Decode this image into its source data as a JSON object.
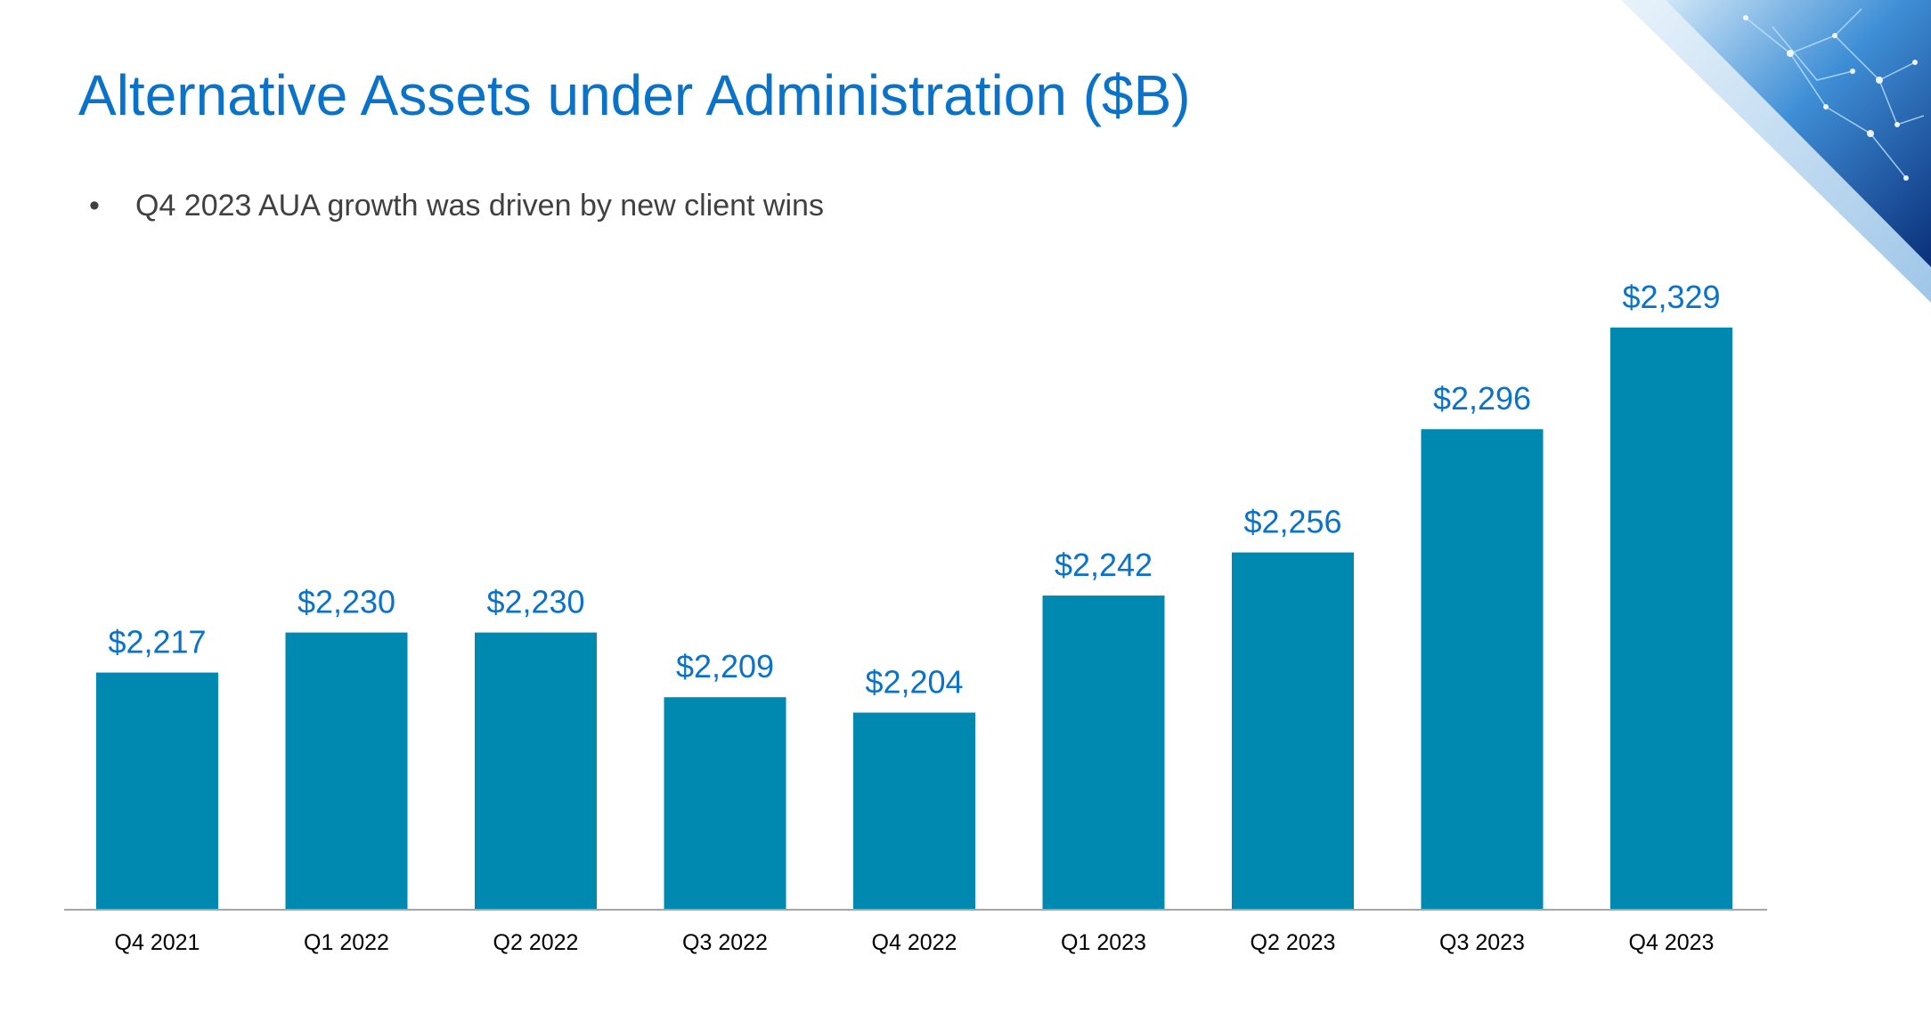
{
  "slide": {
    "title": "Alternative Assets under Administration ($B)",
    "bullets": [
      "Q4 2023 AUA growth was driven by new client wins"
    ]
  },
  "colors": {
    "title": "#0a73c9",
    "bar": "#0089b0",
    "data_label": "#0a73c9",
    "axis": "#a6a6a6",
    "bullet_text": "#404040",
    "category_label": "#000000"
  },
  "chart_data": {
    "type": "bar",
    "title": "",
    "xlabel": "",
    "ylabel": "",
    "categories": [
      "Q4 2021",
      "Q1 2022",
      "Q2 2022",
      "Q3 2022",
      "Q4 2022",
      "Q1 2023",
      "Q2 2023",
      "Q3 2023",
      "Q4 2023"
    ],
    "values": [
      2217,
      2230,
      2230,
      2209,
      2204,
      2242,
      2256,
      2296,
      2329
    ],
    "data_labels": [
      "$2,217",
      "$2,230",
      "$2,230",
      "$2,209",
      "$2,204",
      "$2,242",
      "$2,256",
      "$2,296",
      "$2,329"
    ],
    "ylim": [
      2140,
      2329
    ],
    "grid": false,
    "legend": "none"
  }
}
